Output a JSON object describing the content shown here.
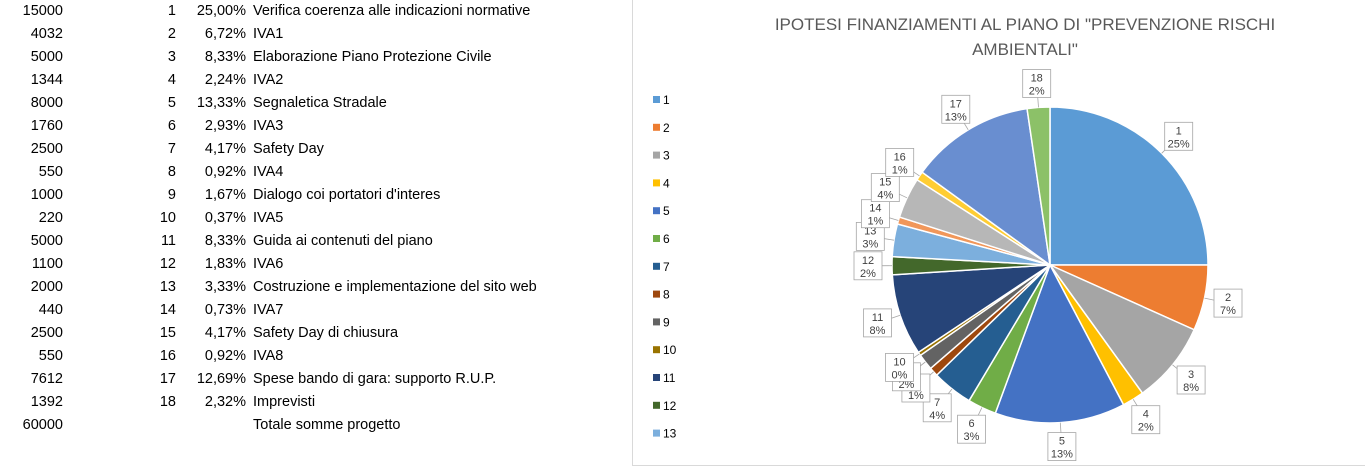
{
  "table": {
    "rows": [
      {
        "amount": "15000",
        "index": "1",
        "percent": "25,00%",
        "description": "Verifica coerenza alle indicazioni normative"
      },
      {
        "amount": "4032",
        "index": "2",
        "percent": "6,72%",
        "description": "IVA1"
      },
      {
        "amount": "5000",
        "index": "3",
        "percent": "8,33%",
        "description": "Elaborazione Piano Protezione Civile"
      },
      {
        "amount": "1344",
        "index": "4",
        "percent": "2,24%",
        "description": "IVA2"
      },
      {
        "amount": "8000",
        "index": "5",
        "percent": "13,33%",
        "description": "Segnaletica Stradale"
      },
      {
        "amount": "1760",
        "index": "6",
        "percent": "2,93%",
        "description": "IVA3"
      },
      {
        "amount": "2500",
        "index": "7",
        "percent": "4,17%",
        "description": "Safety Day"
      },
      {
        "amount": "550",
        "index": "8",
        "percent": "0,92%",
        "description": "IVA4"
      },
      {
        "amount": "1000",
        "index": "9",
        "percent": "1,67%",
        "description": "Dialogo coi portatori d'interes"
      },
      {
        "amount": "220",
        "index": "10",
        "percent": "0,37%",
        "description": "IVA5"
      },
      {
        "amount": "5000",
        "index": "11",
        "percent": "8,33%",
        "description": "Guida ai contenuti del piano"
      },
      {
        "amount": "1100",
        "index": "12",
        "percent": "1,83%",
        "description": "IVA6"
      },
      {
        "amount": "2000",
        "index": "13",
        "percent": "3,33%",
        "description": "Costruzione e implementazione del sito web"
      },
      {
        "amount": "440",
        "index": "14",
        "percent": "0,73%",
        "description": "IVA7"
      },
      {
        "amount": "2500",
        "index": "15",
        "percent": "4,17%",
        "description": "Safety Day di chiusura"
      },
      {
        "amount": "550",
        "index": "16",
        "percent": "0,92%",
        "description": "IVA8"
      },
      {
        "amount": "7612",
        "index": "17",
        "percent": "12,69%",
        "description": "Spese bando di gara: supporto R.U.P."
      },
      {
        "amount": "1392",
        "index": "18",
        "percent": "2,32%",
        "description": "Imprevisti"
      },
      {
        "amount": "60000",
        "index": "",
        "percent": "",
        "description": "Totale somme progetto"
      }
    ]
  },
  "chart_data": {
    "type": "pie",
    "title": "IPOTESI FINANZIAMENTI AL PIANO DI \"PREVENZIONE RISCHI AMBIENTALI\"",
    "title_lines": [
      "IPOTESI FINANZIAMENTI AL PIANO DI \"PREVENZIONE RISCHI",
      "AMBIENTALI\""
    ],
    "categories": [
      "1",
      "2",
      "3",
      "4",
      "5",
      "6",
      "7",
      "8",
      "9",
      "10",
      "11",
      "12",
      "13",
      "14",
      "15",
      "16",
      "17",
      "18"
    ],
    "values": [
      15000,
      4032,
      5000,
      1344,
      8000,
      1760,
      2500,
      550,
      1000,
      220,
      5000,
      1100,
      2000,
      440,
      2500,
      550,
      7612,
      1392
    ],
    "data_labels": [
      "25%",
      "7%",
      "8%",
      "2%",
      "13%",
      "3%",
      "4%",
      "1%",
      "2%",
      "0%",
      "8%",
      "2%",
      "3%",
      "1%",
      "4%",
      "1%",
      "13%",
      "2%"
    ],
    "colors": [
      "#5b9bd5",
      "#ed7d31",
      "#a5a5a5",
      "#ffc000",
      "#4472c4",
      "#70ad47",
      "#255e91",
      "#9e480e",
      "#636363",
      "#997300",
      "#264478",
      "#43682b",
      "#7cafdd",
      "#f1975a",
      "#b7b7b7",
      "#ffcd33",
      "#698ed0",
      "#8cc168"
    ],
    "legend": {
      "position": "left",
      "visible_entries": [
        "1",
        "2",
        "3",
        "4",
        "5",
        "6",
        "7",
        "8",
        "9",
        "10",
        "11",
        "12",
        "13"
      ]
    }
  }
}
